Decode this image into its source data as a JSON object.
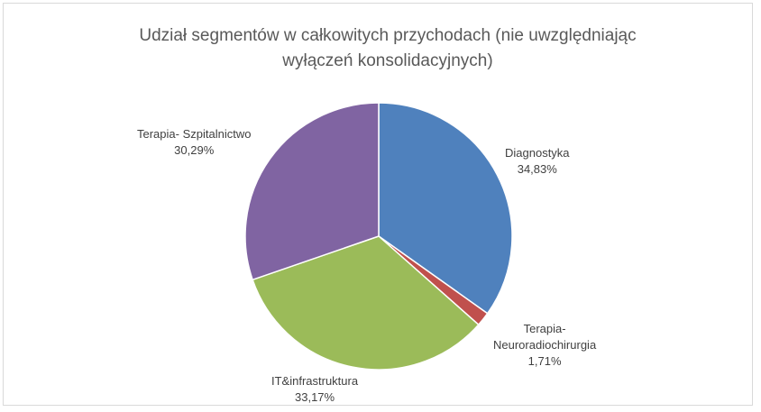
{
  "chart_data": {
    "type": "pie",
    "title": "Udział segmentów w całkowitych przychodach (nie uwzględniając wyłączeń konsolidacyjnych)",
    "slices": [
      {
        "category": "Diagnostyka",
        "percent_label": "34,83%",
        "value": 34.83,
        "color": "#4f81bd"
      },
      {
        "category": "Terapia- Neuroradiochirurgia",
        "percent_label": "1,71%",
        "value": 1.71,
        "color": "#c0504d"
      },
      {
        "category": "IT&infrastruktura",
        "percent_label": "33,17%",
        "value": 33.17,
        "color": "#9bbb59"
      },
      {
        "category": "Terapia- Szpitalnictwo",
        "percent_label": "30,29%",
        "value": 30.29,
        "color": "#8064a2"
      }
    ],
    "legend": "none",
    "start_angle": "12 o'clock",
    "direction": "clockwise"
  }
}
